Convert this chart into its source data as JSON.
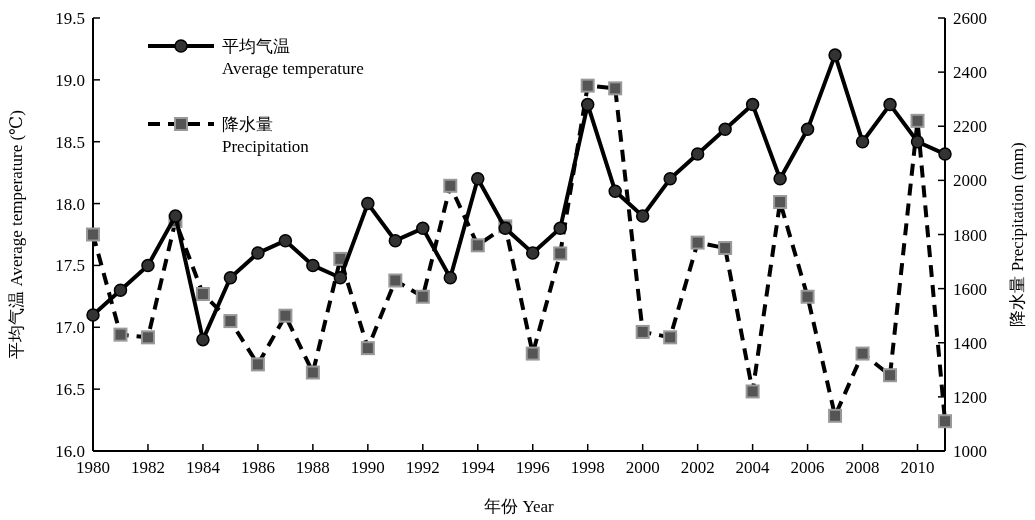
{
  "chart_data": {
    "type": "line",
    "xlabel": "年份 Year",
    "ylabel": "平均气温 Average temperature (℃)",
    "y2label": "降水量 Precipitation (mm)",
    "x": [
      1980,
      1981,
      1982,
      1983,
      1984,
      1985,
      1986,
      1987,
      1988,
      1989,
      1990,
      1991,
      1992,
      1993,
      1994,
      1995,
      1996,
      1997,
      1998,
      1999,
      2000,
      2001,
      2002,
      2003,
      2004,
      2005,
      2006,
      2007,
      2008,
      2009,
      2010,
      2011
    ],
    "xlim": [
      1980,
      2011
    ],
    "xticks": [
      1980,
      1982,
      1984,
      1986,
      1988,
      1990,
      1992,
      1994,
      1996,
      1998,
      2000,
      2002,
      2004,
      2006,
      2008,
      2010
    ],
    "ylim": [
      16,
      19.5
    ],
    "yticks": [
      {
        "value": 16,
        "label": "16.0"
      },
      {
        "value": 16.5,
        "label": "16.5"
      },
      {
        "value": 17,
        "label": "17.0"
      },
      {
        "value": 17.5,
        "label": "17.5"
      },
      {
        "value": 18,
        "label": "18.0"
      },
      {
        "value": 18.5,
        "label": "18.5"
      },
      {
        "value": 19,
        "label": "19.0"
      },
      {
        "value": 19.5,
        "label": "19.5"
      }
    ],
    "y2lim": [
      1000,
      2600
    ],
    "y2ticks": [
      1000,
      1200,
      1400,
      1600,
      1800,
      2000,
      2200,
      2400,
      2600
    ],
    "legend": "top left",
    "grid": false,
    "series": [
      {
        "name": "平均气温\nAverage temperature",
        "color": "#000000",
        "marker": "circle",
        "line_style": "solid",
        "values": [
          17.1,
          17.3,
          17.5,
          17.9,
          16.9,
          17.4,
          17.6,
          17.7,
          17.5,
          17.4,
          18.0,
          17.7,
          17.8,
          17.4,
          18.2,
          17.8,
          17.6,
          17.8,
          18.8,
          18.1,
          17.9,
          18.2,
          18.4,
          18.6,
          18.8,
          18.2,
          18.6,
          19.2,
          18.5,
          18.8,
          18.5,
          18.4
        ]
      },
      {
        "name": "降水量\nPrecipitation",
        "color": "#000000",
        "marker": "square",
        "line_style": "dashed",
        "axis": "y2",
        "values": [
          1800,
          1430,
          1420,
          1850,
          1580,
          1480,
          1320,
          1500,
          1290,
          1710,
          1380,
          1630,
          1570,
          1980,
          1760,
          1830,
          1360,
          1730,
          2350,
          2340,
          1440,
          1420,
          1770,
          1750,
          1220,
          1920,
          1570,
          1130,
          1360,
          1280,
          2220,
          1110
        ]
      }
    ]
  }
}
